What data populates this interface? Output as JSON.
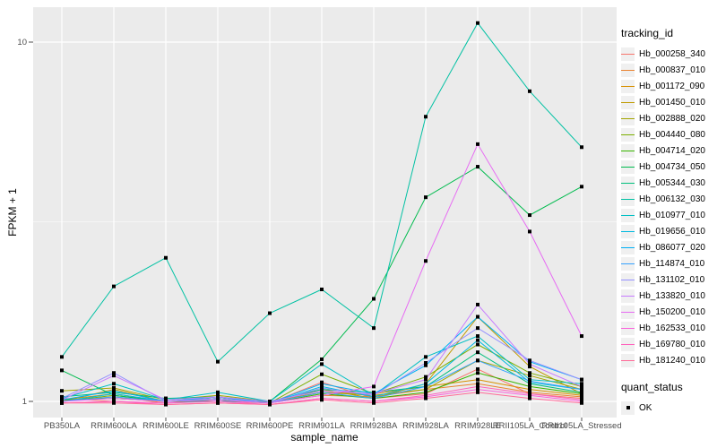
{
  "chart_data": {
    "type": "line",
    "title": "",
    "xlabel": "sample_name",
    "ylabel": "FPKM + 1",
    "y_scale": "log10",
    "y_ticks": [
      {
        "label": "1",
        "value": 1
      },
      {
        "label": "10",
        "value": 10
      }
    ],
    "y_minor_breaks": [
      3.1623
    ],
    "ylim": [
      0.95,
      12.6
    ],
    "grid": "on",
    "legend_position": "right",
    "panel_bg": "#EBEBEB",
    "grid_color": "#FFFFFF",
    "point_color": "#000000",
    "categories": [
      "PB350LA",
      "RRIM600LA",
      "RRIM600LE",
      "RRIM600SE",
      "RRIM600PE",
      "RRIM901LA",
      "RRIM928BA",
      "RRIM928LA",
      "RRIM928LE",
      "RRII105LA_Control",
      "RRII105LA_Stressed"
    ],
    "series": [
      {
        "name": "Hb_000258_340",
        "color": "#F8766D",
        "values": [
          1.02,
          1.0,
          0.99,
          1.0,
          0.99,
          1.13,
          1.02,
          1.05,
          1.23,
          1.05,
          1.02
        ]
      },
      {
        "name": "Hb_000837_010",
        "color": "#EA8331",
        "values": [
          1.0,
          1.03,
          0.99,
          1.01,
          0.99,
          1.04,
          1.03,
          1.08,
          1.12,
          1.06,
          1.03
        ]
      },
      {
        "name": "Hb_001172_090",
        "color": "#D89000",
        "values": [
          1.01,
          1.05,
          1.0,
          1.02,
          0.99,
          1.06,
          1.05,
          1.1,
          1.15,
          1.08,
          1.04
        ]
      },
      {
        "name": "Hb_001450_010",
        "color": "#C09B00",
        "values": [
          1.0,
          1.08,
          1.0,
          1.03,
          0.99,
          1.08,
          1.02,
          1.12,
          1.72,
          1.25,
          1.05
        ]
      },
      {
        "name": "Hb_002888_020",
        "color": "#A3A500",
        "values": [
          1.07,
          1.09,
          1.01,
          1.04,
          1.0,
          1.06,
          1.04,
          1.08,
          1.3,
          1.18,
          1.08
        ]
      },
      {
        "name": "Hb_004440_080",
        "color": "#7CAE00",
        "values": [
          1.0,
          1.04,
          1.0,
          1.02,
          0.99,
          1.19,
          1.05,
          1.17,
          1.44,
          1.2,
          1.1
        ]
      },
      {
        "name": "Hb_004714_020",
        "color": "#39B600",
        "values": [
          1.01,
          1.02,
          1.0,
          1.01,
          0.99,
          1.05,
          1.02,
          1.06,
          1.2,
          1.1,
          1.05
        ]
      },
      {
        "name": "Hb_004734_050",
        "color": "#00BB4E",
        "values": [
          1.22,
          1.04,
          1.0,
          1.0,
          1.0,
          1.31,
          1.93,
          3.7,
          4.5,
          3.3,
          3.96
        ]
      },
      {
        "name": "Hb_005344_030",
        "color": "#00BF7D",
        "values": [
          1.03,
          1.06,
          1.02,
          1.03,
          1.0,
          1.08,
          1.06,
          1.1,
          1.37,
          1.12,
          1.06
        ]
      },
      {
        "name": "Hb_006132_030",
        "color": "#00C1A3",
        "values": [
          1.33,
          2.09,
          2.51,
          1.29,
          1.76,
          2.05,
          1.6,
          6.2,
          11.3,
          7.3,
          5.1
        ]
      },
      {
        "name": "Hb_010977_010",
        "color": "#00BFC4",
        "values": [
          1.02,
          1.12,
          1.01,
          1.06,
          1.0,
          1.27,
          1.04,
          1.33,
          1.52,
          1.15,
          1.12
        ]
      },
      {
        "name": "Hb_019656_010",
        "color": "#00BAE0",
        "values": [
          1.0,
          1.05,
          1.0,
          1.02,
          0.99,
          1.1,
          1.03,
          1.12,
          1.48,
          1.13,
          1.08
        ]
      },
      {
        "name": "Hb_086077_020",
        "color": "#00B0F6",
        "values": [
          1.01,
          1.07,
          1.0,
          1.03,
          0.99,
          1.12,
          1.05,
          1.26,
          1.72,
          1.29,
          1.15
        ]
      },
      {
        "name": "Hb_114874_010",
        "color": "#35A2FF",
        "values": [
          1.0,
          1.03,
          1.0,
          1.01,
          0.99,
          1.06,
          1.02,
          1.1,
          1.3,
          1.14,
          1.08
        ]
      },
      {
        "name": "Hb_131102_010",
        "color": "#9590FF",
        "values": [
          1.02,
          1.2,
          1.0,
          1.02,
          0.99,
          1.09,
          1.04,
          1.28,
          1.6,
          1.3,
          1.15
        ]
      },
      {
        "name": "Hb_133820_010",
        "color": "#C77CFF",
        "values": [
          1.01,
          1.18,
          1.01,
          1.03,
          1.0,
          1.07,
          1.05,
          1.15,
          1.86,
          1.27,
          1.1
        ]
      },
      {
        "name": "Hb_150200_010",
        "color": "#E76BF3",
        "values": [
          1.0,
          1.02,
          1.0,
          1.01,
          0.99,
          1.04,
          1.1,
          2.46,
          5.2,
          2.97,
          1.52
        ]
      },
      {
        "name": "Hb_162533_010",
        "color": "#FA62DB",
        "values": [
          0.99,
          1.0,
          0.99,
          1.0,
          0.98,
          1.02,
          1.0,
          1.03,
          1.08,
          1.04,
          1.0
        ]
      },
      {
        "name": "Hb_169780_010",
        "color": "#FF62BC",
        "values": [
          0.99,
          1.0,
          0.98,
          0.99,
          0.98,
          1.02,
          1.0,
          1.04,
          1.1,
          1.05,
          1.01
        ]
      },
      {
        "name": "Hb_181240_010",
        "color": "#FF6A98",
        "values": [
          0.99,
          0.99,
          0.98,
          0.99,
          0.98,
          1.01,
          0.99,
          1.02,
          1.06,
          1.02,
          0.99
        ]
      }
    ],
    "legend": {
      "tracking_title": "tracking_id",
      "quant_title": "quant_status",
      "quant_items": [
        {
          "label": "OK"
        }
      ]
    }
  }
}
